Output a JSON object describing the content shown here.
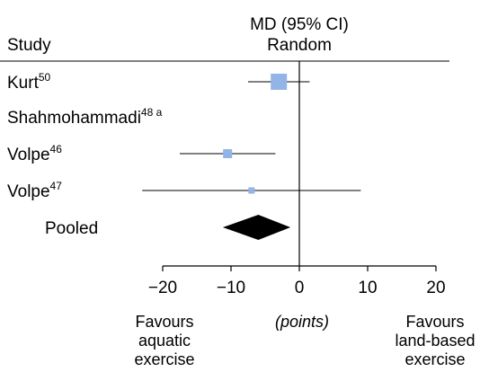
{
  "header": {
    "study_label": "Study",
    "effect_line1": "MD (95% CI)",
    "effect_line2": "Random"
  },
  "chart_data": {
    "type": "forest",
    "measure": "MD (95% CI)",
    "model": "Random",
    "studies": [
      {
        "name": "Kurt",
        "superscript": "50",
        "md": -3,
        "lower": -7.5,
        "upper": 1.5,
        "weight": "large"
      },
      {
        "name": "Shahmohammadi",
        "superscript": "48 a",
        "md": null,
        "lower": null,
        "upper": null,
        "weight": null
      },
      {
        "name": "Volpe",
        "superscript": "46",
        "md": -10.5,
        "lower": -17.5,
        "upper": -3.5,
        "weight": "medium"
      },
      {
        "name": "Volpe",
        "superscript": "47",
        "md": -7,
        "lower": -23,
        "upper": 9,
        "weight": "small"
      }
    ],
    "pooled": {
      "label": "Pooled",
      "md": -6,
      "lower": -11.2,
      "upper": -1.3
    },
    "x_axis": {
      "ticks": [
        -20,
        -10,
        0,
        10,
        20
      ],
      "tick_labels": [
        "−20",
        "−10",
        "0",
        "10",
        "20"
      ],
      "range": [
        -20,
        20
      ],
      "label": "(points)"
    },
    "left_note": [
      "Favours",
      "aquatic",
      "exercise"
    ],
    "right_note": [
      "Favours",
      "land-based",
      "exercise"
    ],
    "colors": {
      "marker": "#92b4e6",
      "pooled": "#000000",
      "lines": "#000000"
    }
  }
}
